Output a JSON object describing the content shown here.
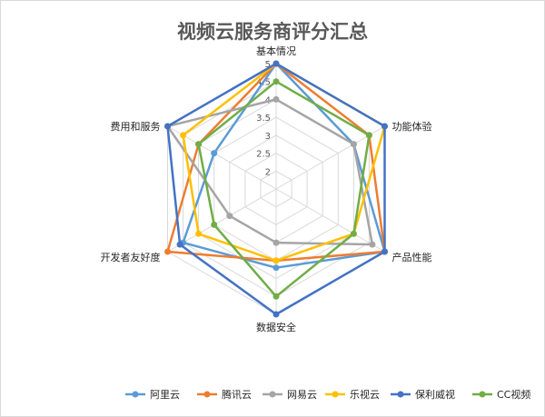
{
  "chart_data": {
    "type": "radar",
    "title": "视频云服务商评分汇总",
    "categories": [
      "基本情况",
      "功能体验",
      "产品性能",
      "数据安全",
      "开发者友好度",
      "费用和服务"
    ],
    "r_ticks": [
      "2",
      "2.5",
      "3",
      "3.5",
      "4",
      "4.5",
      "5"
    ],
    "rlim": [
      1.5,
      5
    ],
    "grid": true,
    "legend": "bottom",
    "series": [
      {
        "name": "阿里云",
        "color": "#5b9bd5",
        "values": [
          5,
          4,
          5,
          3.7,
          4.5,
          3.5
        ]
      },
      {
        "name": "腾讯云",
        "color": "#ed7d31",
        "values": [
          5,
          4.5,
          5,
          3.5,
          5,
          4
        ]
      },
      {
        "name": "网易云",
        "color": "#a5a5a5",
        "values": [
          4,
          4,
          4.6,
          3,
          3,
          5
        ]
      },
      {
        "name": "乐视云",
        "color": "#ffc000",
        "values": [
          5,
          5,
          4,
          3.5,
          4,
          4.5
        ]
      },
      {
        "name": "保利威视",
        "color": "#4472c4",
        "values": [
          5,
          5,
          5,
          5,
          4.6,
          5
        ]
      },
      {
        "name": "CC视频",
        "color": "#70ad47",
        "values": [
          4.5,
          4.5,
          4,
          4.5,
          3.5,
          4
        ]
      }
    ]
  }
}
